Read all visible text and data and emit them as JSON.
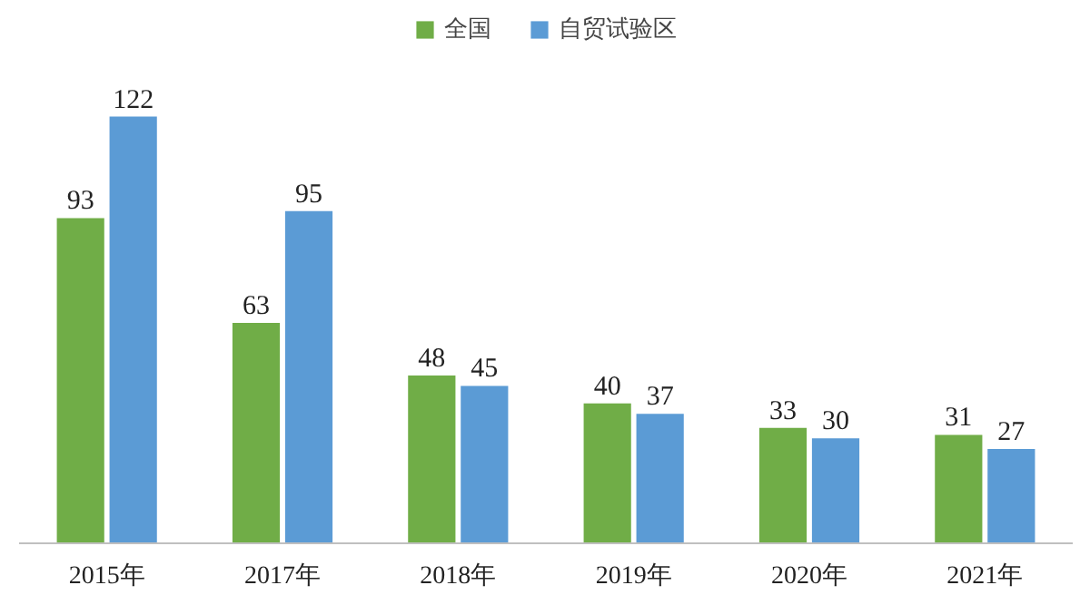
{
  "chart_data": {
    "type": "bar",
    "categories": [
      "2015年",
      "2017年",
      "2018年",
      "2019年",
      "2020年",
      "2021年"
    ],
    "series": [
      {
        "name": "全国",
        "color": "#70ad47",
        "values": [
          93,
          63,
          48,
          40,
          33,
          31
        ]
      },
      {
        "name": "自贸试验区",
        "color": "#5b9bd5",
        "values": [
          122,
          95,
          45,
          37,
          30,
          27
        ]
      }
    ],
    "data_labels": true,
    "legend": "top"
  }
}
